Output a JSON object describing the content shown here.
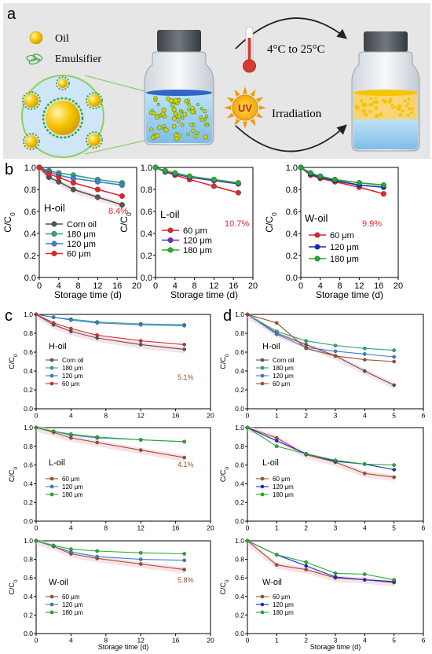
{
  "figure": {
    "panel_letters": [
      "a",
      "b",
      "c",
      "d"
    ],
    "schematic": {
      "oil_label": "Oil",
      "emulsifier_label": "Emulsifier",
      "temp_label": "4°C to 25°C",
      "uv_badge": "UV",
      "irradiation_label": "Irradiation",
      "colors": {
        "background": "#e6e6e6",
        "oil": "#f6c500",
        "emulsifier": "#3aa53a",
        "thermo_red": "#d83a2f",
        "water": "#9fd0f2",
        "arrow": "#222222"
      }
    },
    "colors": {
      "corn": "#555555",
      "s180": "#2fa77a",
      "s120": "#3d7fd6",
      "s60": "#e3262b",
      "l60": "#e3262b",
      "l120": "#6a2fd0",
      "l180": "#22b02b",
      "w60": "#e3262b",
      "w120": "#1426dc",
      "w180": "#22a82b",
      "c60": "#a0522d",
      "pct_b": "#e3262b",
      "pct_c": "#a0522d",
      "shade": "#f4c8d6"
    }
  },
  "chart_data": [
    {
      "id": "b1",
      "type": "line",
      "series_name": "H-oil",
      "xlabel": "Storage time (d)",
      "ylabel": "C/C0",
      "xlim": [
        0,
        20
      ],
      "ylim": [
        0.0,
        1.0
      ],
      "xticks": [
        "0",
        "4",
        "8",
        "12",
        "16",
        "20"
      ],
      "yticks": [
        "0.0",
        "0.2",
        "0.4",
        "0.6",
        "0.8",
        "1.0"
      ],
      "x": [
        0,
        2,
        4,
        7,
        12,
        17
      ],
      "series": [
        {
          "name": "Corn oil",
          "values": [
            1.0,
            0.91,
            0.87,
            0.8,
            0.73,
            0.66
          ]
        },
        {
          "name": "180 μm",
          "values": [
            1.0,
            0.97,
            0.95,
            0.93,
            0.89,
            0.86
          ]
        },
        {
          "name": "120 μm",
          "values": [
            1.0,
            0.96,
            0.93,
            0.9,
            0.87,
            0.84
          ]
        },
        {
          "name": "60 μm",
          "values": [
            1.0,
            0.94,
            0.91,
            0.86,
            0.8,
            0.74
          ]
        }
      ],
      "annotation": "8.4%"
    },
    {
      "id": "b2",
      "type": "line",
      "series_name": "L-oil",
      "xlabel": "Storage time (d)",
      "ylabel": "C/C0",
      "xlim": [
        0,
        20
      ],
      "ylim": [
        0.0,
        1.0
      ],
      "xticks": [
        "0",
        "4",
        "8",
        "12",
        "16",
        "20"
      ],
      "yticks": [
        "0.0",
        "0.2",
        "0.4",
        "0.6",
        "0.8",
        "1.0"
      ],
      "x": [
        0,
        2,
        4,
        7,
        12,
        17
      ],
      "series": [
        {
          "name": "60 μm",
          "values": [
            1.0,
            0.96,
            0.93,
            0.89,
            0.83,
            0.77
          ]
        },
        {
          "name": "120 μm",
          "values": [
            1.0,
            0.96,
            0.94,
            0.91,
            0.88,
            0.85
          ]
        },
        {
          "name": "180 μm",
          "values": [
            1.0,
            0.97,
            0.95,
            0.92,
            0.89,
            0.86
          ]
        }
      ],
      "annotation": "10.7%"
    },
    {
      "id": "b3",
      "type": "line",
      "series_name": "W-oil",
      "xlabel": "Storage time (d)",
      "ylabel": "C/C0",
      "xlim": [
        0,
        20
      ],
      "ylim": [
        0.0,
        1.0
      ],
      "xticks": [
        "0",
        "4",
        "8",
        "12",
        "16",
        "20"
      ],
      "yticks": [
        "0.0",
        "0.2",
        "0.4",
        "0.6",
        "0.8",
        "1.0"
      ],
      "x": [
        0,
        2,
        4,
        7,
        12,
        17
      ],
      "series": [
        {
          "name": "60 μm",
          "values": [
            1.0,
            0.93,
            0.9,
            0.87,
            0.82,
            0.76
          ]
        },
        {
          "name": "120 μm",
          "values": [
            1.0,
            0.94,
            0.91,
            0.88,
            0.84,
            0.82
          ]
        },
        {
          "name": "180 μm",
          "values": [
            1.0,
            0.95,
            0.92,
            0.89,
            0.86,
            0.84
          ]
        }
      ],
      "annotation": "9.9%"
    },
    {
      "id": "c1",
      "type": "line",
      "series_name": "H-oil",
      "xlabel": "",
      "ylabel": "C/C0",
      "xlim": [
        0,
        20
      ],
      "ylim": [
        0.0,
        1.0
      ],
      "xticks": [
        "0",
        "4",
        "8",
        "12",
        "16",
        "20"
      ],
      "yticks": [
        "0.0",
        "0.2",
        "0.4",
        "0.6",
        "0.8",
        "1.0"
      ],
      "x": [
        0,
        2,
        4,
        7,
        12,
        17
      ],
      "series": [
        {
          "name": "Corn oil",
          "values": [
            1.0,
            0.89,
            0.82,
            0.75,
            0.68,
            0.63
          ]
        },
        {
          "name": "180 μm",
          "values": [
            1.0,
            0.97,
            0.95,
            0.92,
            0.9,
            0.89
          ]
        },
        {
          "name": "120 μm",
          "values": [
            1.0,
            0.97,
            0.94,
            0.91,
            0.89,
            0.88
          ]
        },
        {
          "name": "60 μm",
          "values": [
            1.0,
            0.91,
            0.85,
            0.78,
            0.72,
            0.68
          ]
        }
      ],
      "annotation": "5.1%"
    },
    {
      "id": "c2",
      "type": "line",
      "series_name": "L-oil",
      "xlabel": "",
      "ylabel": "C/C0",
      "xlim": [
        0,
        20
      ],
      "ylim": [
        0.0,
        1.0
      ],
      "xticks": [
        "0",
        "4",
        "8",
        "12",
        "16",
        "20"
      ],
      "yticks": [
        "0.0",
        "0.2",
        "0.4",
        "0.6",
        "0.8",
        "1.0"
      ],
      "x": [
        0,
        2,
        4,
        7,
        12,
        17
      ],
      "series": [
        {
          "name": "60 μm",
          "values": [
            1.0,
            0.95,
            0.89,
            0.84,
            0.76,
            0.68
          ]
        },
        {
          "name": "120 μm",
          "values": [
            1.0,
            0.96,
            0.92,
            0.89,
            0.87,
            0.85
          ]
        },
        {
          "name": "180 μm",
          "values": [
            1.0,
            0.96,
            0.93,
            0.9,
            0.87,
            0.85
          ]
        }
      ],
      "annotation": "4.1%"
    },
    {
      "id": "c3",
      "type": "line",
      "series_name": "W-oil",
      "xlabel": "Storage time (d)",
      "ylabel": "C/C0",
      "xlim": [
        0,
        20
      ],
      "ylim": [
        0.0,
        1.0
      ],
      "xticks": [
        "0",
        "4",
        "8",
        "12",
        "16",
        "20"
      ],
      "yticks": [
        "0.0",
        "0.2",
        "0.4",
        "0.6",
        "0.8",
        "1.0"
      ],
      "x": [
        0,
        2,
        4,
        7,
        12,
        17
      ],
      "series": [
        {
          "name": "60 μm",
          "values": [
            1.0,
            0.94,
            0.86,
            0.81,
            0.75,
            0.69
          ]
        },
        {
          "name": "120 μm",
          "values": [
            1.0,
            0.94,
            0.88,
            0.83,
            0.8,
            0.79
          ]
        },
        {
          "name": "180 μm",
          "values": [
            1.0,
            0.95,
            0.91,
            0.89,
            0.87,
            0.86
          ]
        }
      ],
      "annotation": "5.8%"
    },
    {
      "id": "d1",
      "type": "line",
      "series_name": "H-oil",
      "xlabel": "",
      "ylabel": "C/C0",
      "xlim": [
        0,
        6
      ],
      "ylim": [
        0.0,
        1.0
      ],
      "xticks": [
        "0",
        "1",
        "2",
        "3",
        "4",
        "5",
        "6"
      ],
      "yticks": [
        "0.0",
        "0.2",
        "0.4",
        "0.6",
        "0.8",
        "1.0"
      ],
      "x": [
        0,
        1,
        2,
        3,
        4,
        5
      ],
      "series": [
        {
          "name": "Corn oil",
          "values": [
            1.0,
            0.8,
            0.68,
            0.56,
            0.4,
            0.25
          ]
        },
        {
          "name": "180 μm",
          "values": [
            1.0,
            0.82,
            0.72,
            0.67,
            0.64,
            0.62
          ]
        },
        {
          "name": "120 μm",
          "values": [
            1.0,
            0.79,
            0.65,
            0.61,
            0.58,
            0.55
          ]
        },
        {
          "name": "60 μm",
          "values": [
            1.0,
            0.91,
            0.64,
            0.56,
            0.52,
            0.5
          ]
        }
      ]
    },
    {
      "id": "d2",
      "type": "line",
      "series_name": "L-oil",
      "xlabel": "",
      "ylabel": "C/C0",
      "xlim": [
        0,
        6
      ],
      "ylim": [
        0.0,
        1.0
      ],
      "xticks": [
        "0",
        "1",
        "2",
        "3",
        "4",
        "5",
        "6"
      ],
      "yticks": [
        "0.0",
        "0.2",
        "0.4",
        "0.6",
        "0.8",
        "1.0"
      ],
      "x": [
        0,
        1,
        2,
        3,
        4,
        5
      ],
      "series": [
        {
          "name": "60 μm",
          "values": [
            1.0,
            0.89,
            0.71,
            0.63,
            0.51,
            0.47
          ]
        },
        {
          "name": "120 μm",
          "values": [
            1.0,
            0.86,
            0.72,
            0.64,
            0.61,
            0.55
          ]
        },
        {
          "name": "180 μm",
          "values": [
            1.0,
            0.8,
            0.72,
            0.65,
            0.61,
            0.6
          ]
        }
      ]
    },
    {
      "id": "d3",
      "type": "line",
      "series_name": "W-oil",
      "xlabel": "Storage time (d)",
      "ylabel": "C/C0",
      "xlim": [
        0,
        6
      ],
      "ylim": [
        0.0,
        1.0
      ],
      "xticks": [
        "0",
        "1",
        "2",
        "3",
        "4",
        "5",
        "6"
      ],
      "yticks": [
        "0.0",
        "0.2",
        "0.4",
        "0.6",
        "0.8",
        "1.0"
      ],
      "x": [
        0,
        1,
        2,
        3,
        4,
        5
      ],
      "series": [
        {
          "name": "60 μm",
          "values": [
            1.0,
            0.74,
            0.69,
            0.6,
            0.58,
            0.55
          ]
        },
        {
          "name": "120 μm",
          "values": [
            1.0,
            0.85,
            0.73,
            0.61,
            0.58,
            0.56
          ]
        },
        {
          "name": "180 μm",
          "values": [
            1.0,
            0.85,
            0.77,
            0.65,
            0.64,
            0.58
          ]
        }
      ]
    }
  ]
}
